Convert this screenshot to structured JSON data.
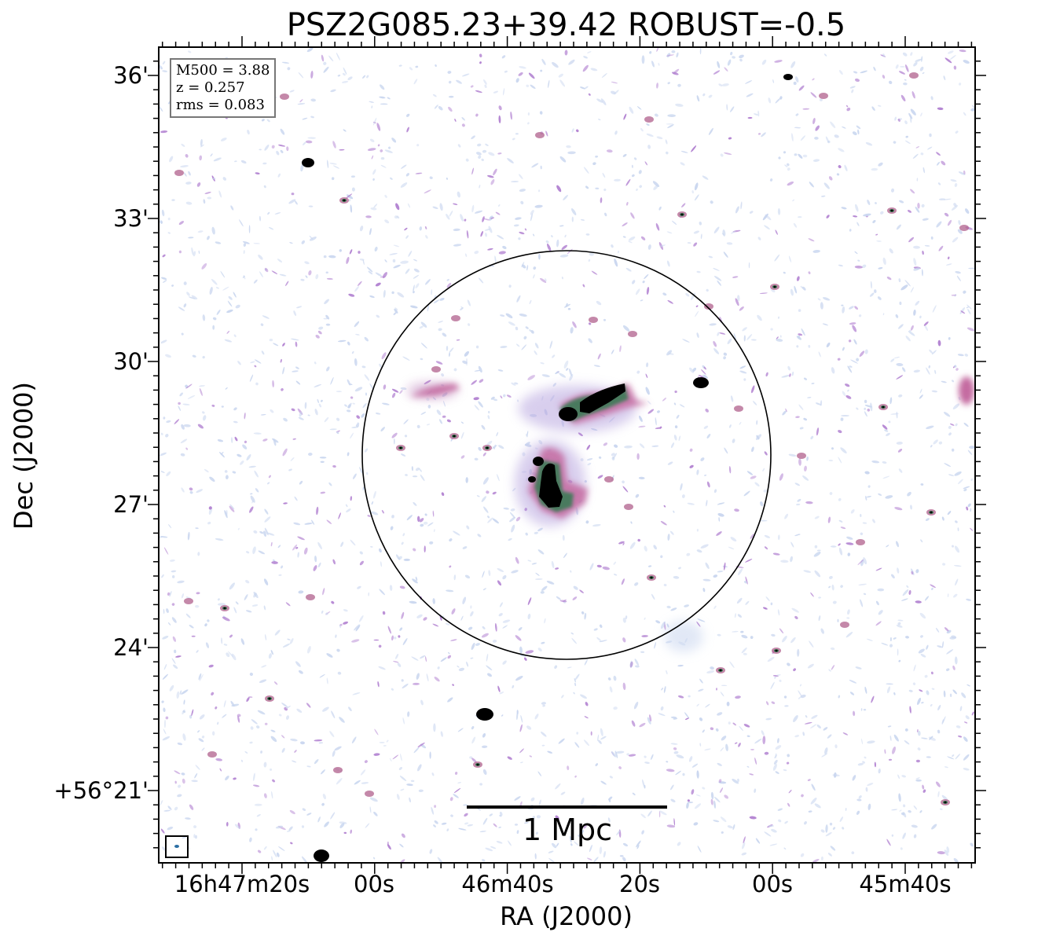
{
  "figure": {
    "title": "PSZ2G085.23+39.42 ROBUST=-0.5",
    "xlabel": "RA (J2000)",
    "ylabel": "Dec (J2000)",
    "xticks": [
      "16h47m20s",
      "00s",
      "46m40s",
      "20s",
      "00s",
      "45m40s"
    ],
    "yticks": [
      "36'",
      "33'",
      "30'",
      "27'",
      "24'",
      "+56°21'"
    ],
    "info": [
      "M500 = 3.88",
      "z = 0.257",
      "rms = 0.083"
    ],
    "scalebar": "1 Mpc"
  },
  "colors": {
    "background": "#ffffff",
    "noise_light": "#c9d6ef",
    "noise_purple": "#b07fd0",
    "noise_magenta": "#b0608c",
    "emission_green": "#3a7a55",
    "emission_core": "#000000",
    "circle": "#000000"
  }
}
